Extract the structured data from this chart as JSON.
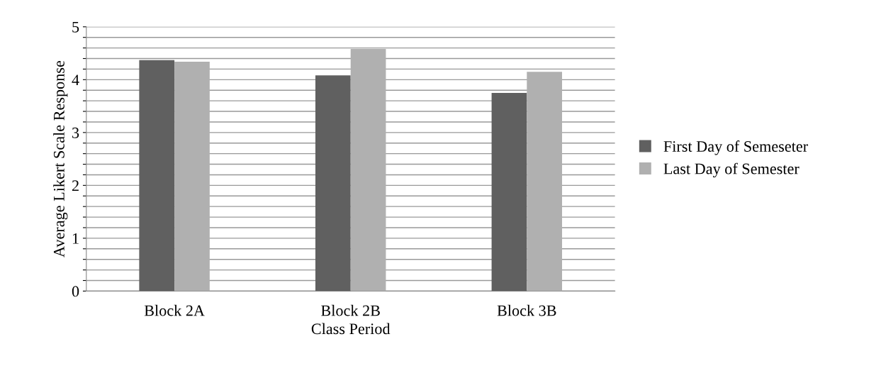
{
  "chart_data": {
    "type": "bar",
    "xlabel": "Class Period",
    "ylabel": "Average Likert Scale Response",
    "categories": [
      "Block 2A",
      "Block 2B",
      "Block 3B"
    ],
    "series": [
      {
        "name": "First Day of Semeseter",
        "color": "#606060",
        "values": [
          4.37,
          4.08,
          3.75
        ]
      },
      {
        "name": "Last Day of Semester",
        "color": "#b0b0b0",
        "values": [
          4.34,
          4.58,
          4.15
        ]
      }
    ],
    "ylim": [
      0,
      5
    ],
    "yticks": [
      0,
      {
        "value": 0.2,
        "label": null
      },
      {
        "value": 0.4,
        "label": null
      },
      {
        "value": 0.6,
        "label": null
      },
      {
        "value": 0.8,
        "label": null
      },
      1,
      {
        "value": 1.2,
        "label": null
      },
      {
        "value": 1.4,
        "label": null
      },
      {
        "value": 1.6,
        "label": null
      },
      {
        "value": 1.8,
        "label": null
      },
      2,
      {
        "value": 2.2,
        "label": null
      },
      {
        "value": 2.4,
        "label": null
      },
      {
        "value": 2.6,
        "label": null
      },
      {
        "value": 2.8,
        "label": null
      },
      3,
      {
        "value": 3.2,
        "label": null
      },
      {
        "value": 3.4,
        "label": null
      },
      {
        "value": 3.6,
        "label": null
      },
      {
        "value": 3.8,
        "label": null
      },
      4,
      {
        "value": 4.2,
        "label": null
      },
      {
        "value": 4.4,
        "label": null
      },
      {
        "value": 4.6,
        "label": null
      },
      {
        "value": 4.8,
        "label": null
      },
      5
    ],
    "grid": "y",
    "legend": "right"
  }
}
